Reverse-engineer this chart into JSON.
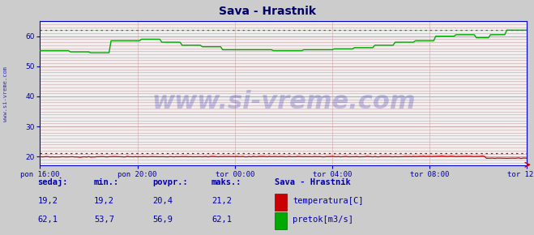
{
  "title": "Sava - Hrastnik",
  "bg_color": "#cccccc",
  "plot_bg_color": "#f0eeee",
  "temp_color": "#cc0000",
  "flow_color": "#00aa00",
  "axis_color": "#0000cc",
  "text_color": "#0000aa",
  "watermark": "www.si-vreme.com",
  "watermark_color": "#0000aa",
  "sidebar_text": "www.si-vreme.com",
  "x_tick_labels": [
    "pon 16:00",
    "pon 20:00",
    "tor 00:00",
    "tor 04:00",
    "tor 08:00",
    "tor 12:00"
  ],
  "x_tick_positions": [
    0,
    48,
    96,
    144,
    192,
    240
  ],
  "y_ticks": [
    20,
    30,
    40,
    50,
    60
  ],
  "ylim": [
    17,
    65
  ],
  "xlim": [
    0,
    240
  ],
  "temp_max": 21.2,
  "flow_max": 62.1,
  "legend_title": "Sava - Hrastnik",
  "legend_label1": "temperatura[C]",
  "legend_label2": "pretok[m3/s]",
  "stats_labels": [
    "sedaj:",
    "min.:",
    "povpr.:",
    "maks.:"
  ],
  "temp_sedaj": "19,2",
  "temp_min": "19,2",
  "temp_povpr": "20,4",
  "temp_maks": "21,2",
  "flow_sedaj": "62,1",
  "flow_min": "53,7",
  "flow_povpr": "56,9",
  "flow_maks": "62,1"
}
